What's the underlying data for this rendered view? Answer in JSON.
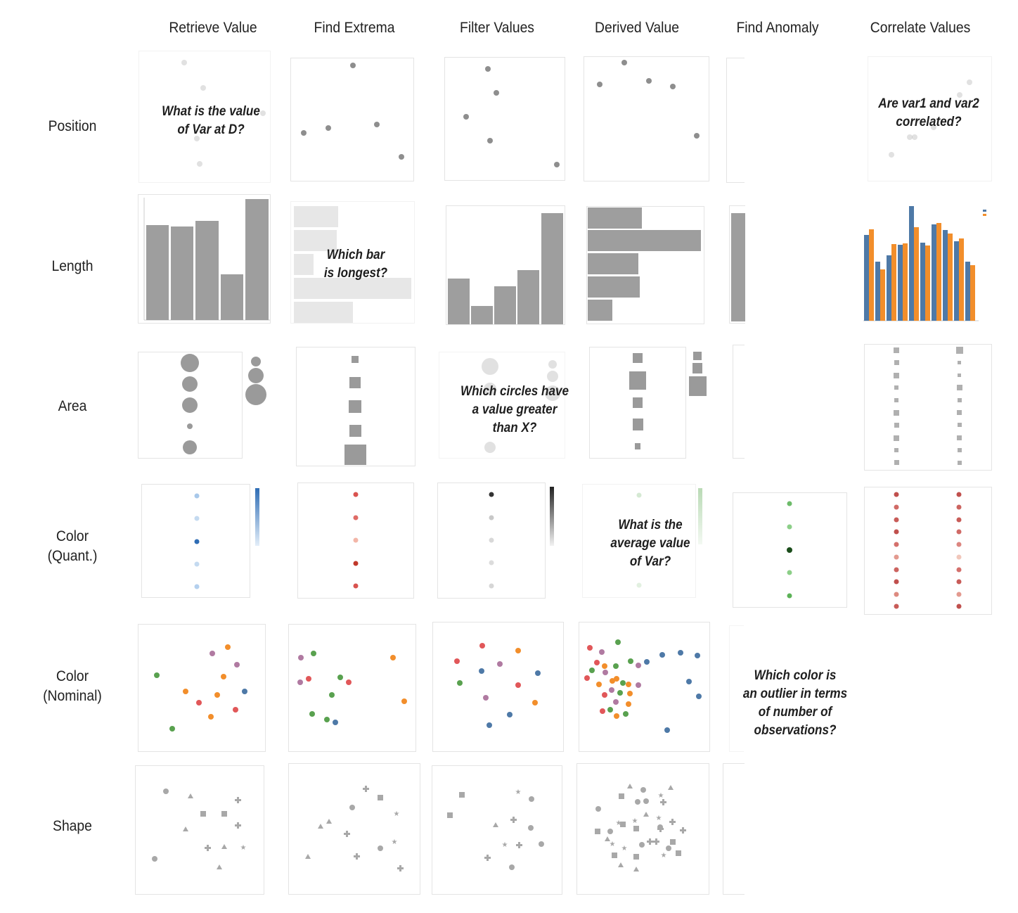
{
  "columns": {
    "retrieve": "Retrieve Value",
    "extrema": "Find Extrema",
    "filter": "Filter Values",
    "derived": "Derived Value",
    "anomaly": "Find Anomaly",
    "correlate": "Correlate Values"
  },
  "rows": {
    "position": [
      "Position"
    ],
    "length": [
      "Length"
    ],
    "area": [
      "Area"
    ],
    "color_quant": [
      "Color",
      "(Quant.)"
    ],
    "color_nominal": [
      "Color",
      "(Nominal)"
    ],
    "shape": [
      "Shape"
    ]
  },
  "questions": {
    "retrieve_value": [
      "What is the value",
      "of Var at D?"
    ],
    "find_extrema": [
      "Which bar",
      "is longest?"
    ],
    "filter_values": [
      "Which circles have",
      "a value greater",
      "than X?"
    ],
    "derived_value": [
      "What is the",
      "average value",
      "of Var?"
    ],
    "find_anomaly": [
      "Which color is",
      "an outlier in terms",
      "of number of",
      "observations?"
    ],
    "correlate_values": [
      "Are var1 and var2",
      "correlated?"
    ]
  },
  "colors": {
    "mark_gray": "#9a9a9a",
    "bar_gray": "#9e9e9e",
    "blue": "#4e79a7",
    "orange": "#f28e2b",
    "red": "#e15759",
    "green": "#59a14f",
    "purple": "#b07aa1",
    "seq_blue": "#2f6db5",
    "seq_red": "#c0392b",
    "seq_green": "#2e7d32"
  }
}
